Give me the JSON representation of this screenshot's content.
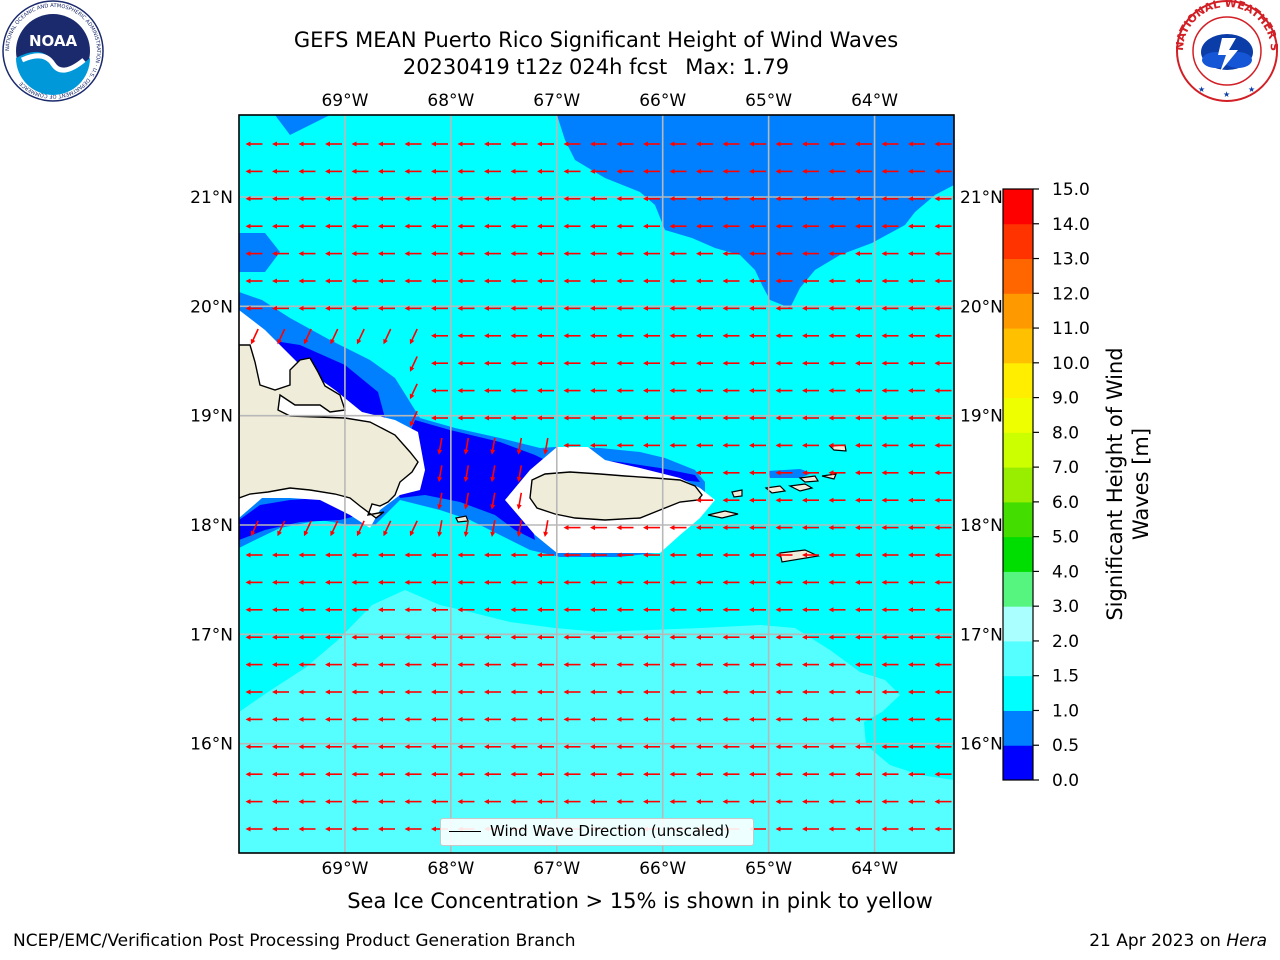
{
  "header": {
    "title": "GEFS MEAN Puerto Rico Significant Height of Wind Waves",
    "subtitle_date": "20230419 t12z 024h fcst",
    "subtitle_max": "Max: 1.79"
  },
  "logos": {
    "left_name": "noaa-logo",
    "left_text": "NOAA",
    "left_ring_text": "NATIONAL OCEANIC AND ATMOSPHERIC ADMINISTRATION · U.S. DEPARTMENT OF COMMERCE",
    "right_name": "nws-logo",
    "right_ring_text": "NATIONAL WEATHER SERVICE"
  },
  "map": {
    "lon_range": [
      -70.0,
      -63.25
    ],
    "lat_range": [
      15.0,
      21.75
    ],
    "lon_ticks": [
      -69,
      -68,
      -67,
      -66,
      -65,
      -64
    ],
    "lat_ticks": [
      16,
      17,
      18,
      19,
      20,
      21
    ],
    "lon_labels": [
      "69°W",
      "68°W",
      "67°W",
      "66°W",
      "65°W",
      "64°W"
    ],
    "lat_labels": [
      "16°N",
      "17°N",
      "18°N",
      "19°N",
      "20°N",
      "21°N"
    ],
    "grid": true,
    "ocean_color": "#00ffff",
    "land_color": "#efedd9",
    "vector_color": "#ff0000",
    "dominant_direction": "westward"
  },
  "legend": {
    "label": "Wind Wave Direction (unscaled)",
    "position": "bottom-center"
  },
  "colorbar": {
    "label": "Significant Height of Wind Waves [m]",
    "label_line1": "Significant Height of Wind",
    "label_line2": "Waves [m]",
    "ticks": [
      "0.0",
      "0.5",
      "1.0",
      "1.5",
      "2.0",
      "3.0",
      "4.0",
      "5.0",
      "6.0",
      "7.0",
      "8.0",
      "9.0",
      "10.0",
      "11.0",
      "12.0",
      "13.0",
      "14.0",
      "15.0"
    ],
    "colors": [
      "#0000ff",
      "#0080ff",
      "#00ffff",
      "#55ffff",
      "#aaffff",
      "#55f580",
      "#00dd00",
      "#44dd00",
      "#99ee00",
      "#ccff00",
      "#eeff00",
      "#ffee00",
      "#ffc000",
      "#ff9900",
      "#ff6600",
      "#ff3300",
      "#ff0000"
    ]
  },
  "chart_data": {
    "type": "heatmap",
    "title": "GEFS MEAN Puerto Rico Significant Height of Wind Waves",
    "subtitle": "20230419 t12z 024h fcst   Max: 1.79",
    "variable": "Significant Height of Wind Waves [m]",
    "max_value": 1.79,
    "value_ranges_observed": {
      "open_ocean_north": "1.0–1.5",
      "northeast_band": "0.5–1.0",
      "caribbean_south": "1.5–2.0",
      "mona_passage_lee": "0.0–0.5"
    },
    "levels": [
      0.0,
      0.5,
      1.0,
      1.5,
      2.0,
      3.0,
      4.0,
      5.0,
      6.0,
      7.0,
      8.0,
      9.0,
      10.0,
      11.0,
      12.0,
      13.0,
      14.0,
      15.0
    ]
  },
  "caption": "Sea Ice Concentration > 15% is shown in pink to yellow",
  "footer": {
    "left": "NCEP/EMC/Verification Post Processing Product Generation Branch",
    "right_date": "21 Apr 2023 on",
    "right_machine": "Hera"
  }
}
